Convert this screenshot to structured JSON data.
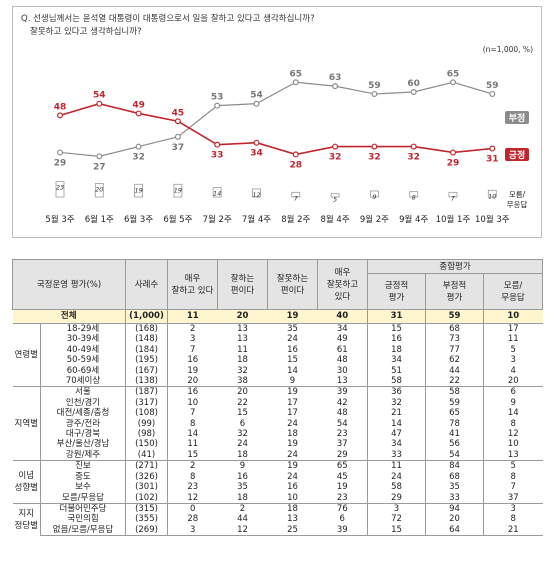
{
  "chart_data": {
    "type": "line",
    "question_line1": "Q. 선생님께서는 윤석열 대통령이 대통령으로서 일을 잘하고 있다고 생각하십니까?",
    "question_line2": "잘못하고 있다고 생각하십니까?",
    "unit_note": "(n=1,000, %)",
    "categories": [
      "5월 3주",
      "6월 1주",
      "6월 3주",
      "6월 5주",
      "7월 2주",
      "7월 4주",
      "8월 2주",
      "8월 4주",
      "9월 2주",
      "9월 4주",
      "10월 1주",
      "10월 3주"
    ],
    "series": [
      {
        "name": "부정",
        "values": [
          29,
          27,
          32,
          37,
          53,
          54,
          65,
          63,
          59,
          60,
          65,
          59
        ],
        "color": "#8c8c8c"
      },
      {
        "name": "긍정",
        "values": [
          48,
          54,
          49,
          45,
          33,
          34,
          28,
          32,
          32,
          32,
          29,
          31
        ],
        "color": "#c0262d"
      }
    ],
    "dont_know": {
      "name": "모름/\n무응답",
      "name_line1": "모름/",
      "name_line2": "무응답",
      "values": [
        23,
        20,
        19,
        19,
        14,
        12,
        7,
        5,
        9,
        8,
        7,
        10
      ]
    },
    "ylim": [
      0,
      75
    ]
  },
  "table": {
    "header": {
      "group": "국정운영 평가(%)",
      "n": "사례수",
      "c1": "매우\n잘하고 있다",
      "c2": "잘하는\n편이다",
      "c3": "잘못하는\n편이다",
      "c4": "매우\n잘못하고\n있다",
      "summary": "종합평가",
      "pos": "긍정적\n평가",
      "neg": "부정적\n평가",
      "dk": "모름/\n무응답"
    },
    "total": {
      "label": "전체",
      "n": "(1,000)",
      "c1": "11",
      "c2": "20",
      "c3": "19",
      "c4": "40",
      "pos": "31",
      "neg": "59",
      "dk": "10"
    },
    "groups": [
      {
        "name": "연령별",
        "rows": [
          {
            "label": "18-29세",
            "n": "(168)",
            "c1": "2",
            "c2": "13",
            "c3": "35",
            "c4": "34",
            "pos": "15",
            "neg": "68",
            "dk": "17"
          },
          {
            "label": "30-39세",
            "n": "(148)",
            "c1": "3",
            "c2": "13",
            "c3": "24",
            "c4": "49",
            "pos": "16",
            "neg": "73",
            "dk": "11"
          },
          {
            "label": "40-49세",
            "n": "(184)",
            "c1": "7",
            "c2": "11",
            "c3": "16",
            "c4": "61",
            "pos": "18",
            "neg": "77",
            "dk": "5"
          },
          {
            "label": "50-59세",
            "n": "(195)",
            "c1": "16",
            "c2": "18",
            "c3": "15",
            "c4": "48",
            "pos": "34",
            "neg": "62",
            "dk": "3"
          },
          {
            "label": "60-69세",
            "n": "(167)",
            "c1": "19",
            "c2": "32",
            "c3": "14",
            "c4": "30",
            "pos": "51",
            "neg": "44",
            "dk": "4"
          },
          {
            "label": "70세이상",
            "n": "(138)",
            "c1": "20",
            "c2": "38",
            "c3": "9",
            "c4": "13",
            "pos": "58",
            "neg": "22",
            "dk": "20"
          }
        ]
      },
      {
        "name": "지역별",
        "rows": [
          {
            "label": "서울",
            "n": "(187)",
            "c1": "16",
            "c2": "20",
            "c3": "19",
            "c4": "39",
            "pos": "36",
            "neg": "58",
            "dk": "6"
          },
          {
            "label": "인천/경기",
            "n": "(317)",
            "c1": "10",
            "c2": "22",
            "c3": "17",
            "c4": "42",
            "pos": "32",
            "neg": "59",
            "dk": "9"
          },
          {
            "label": "대전/세종/충청",
            "n": "(108)",
            "c1": "7",
            "c2": "15",
            "c3": "17",
            "c4": "48",
            "pos": "21",
            "neg": "65",
            "dk": "14"
          },
          {
            "label": "광주/전라",
            "n": "(99)",
            "c1": "8",
            "c2": "6",
            "c3": "24",
            "c4": "54",
            "pos": "14",
            "neg": "78",
            "dk": "8"
          },
          {
            "label": "대구/경북",
            "n": "(98)",
            "c1": "14",
            "c2": "32",
            "c3": "18",
            "c4": "23",
            "pos": "47",
            "neg": "41",
            "dk": "12"
          },
          {
            "label": "부산/울산/경남",
            "n": "(150)",
            "c1": "11",
            "c2": "24",
            "c3": "19",
            "c4": "37",
            "pos": "34",
            "neg": "56",
            "dk": "10"
          },
          {
            "label": "강원/제주",
            "n": "(41)",
            "c1": "15",
            "c2": "18",
            "c3": "24",
            "c4": "29",
            "pos": "33",
            "neg": "54",
            "dk": "13"
          }
        ]
      },
      {
        "name": "이념\n성향별",
        "rows": [
          {
            "label": "진보",
            "n": "(271)",
            "c1": "2",
            "c2": "9",
            "c3": "19",
            "c4": "65",
            "pos": "11",
            "neg": "84",
            "dk": "5"
          },
          {
            "label": "중도",
            "n": "(326)",
            "c1": "8",
            "c2": "16",
            "c3": "24",
            "c4": "45",
            "pos": "24",
            "neg": "68",
            "dk": "8"
          },
          {
            "label": "보수",
            "n": "(301)",
            "c1": "23",
            "c2": "35",
            "c3": "16",
            "c4": "19",
            "pos": "58",
            "neg": "35",
            "dk": "7"
          },
          {
            "label": "모름/무응답",
            "n": "(102)",
            "c1": "12",
            "c2": "18",
            "c3": "10",
            "c4": "23",
            "pos": "29",
            "neg": "33",
            "dk": "37"
          }
        ]
      },
      {
        "name": "지지\n정당별",
        "rows": [
          {
            "label": "더불어민주당",
            "n": "(315)",
            "c1": "0",
            "c2": "2",
            "c3": "18",
            "c4": "76",
            "pos": "3",
            "neg": "94",
            "dk": "3"
          },
          {
            "label": "국민의힘",
            "n": "(355)",
            "c1": "28",
            "c2": "44",
            "c3": "13",
            "c4": "6",
            "pos": "72",
            "neg": "20",
            "dk": "8"
          },
          {
            "label": "없음/모름/무응답",
            "n": "(269)",
            "c1": "3",
            "c2": "12",
            "c3": "25",
            "c4": "39",
            "pos": "15",
            "neg": "64",
            "dk": "21"
          }
        ]
      }
    ]
  }
}
